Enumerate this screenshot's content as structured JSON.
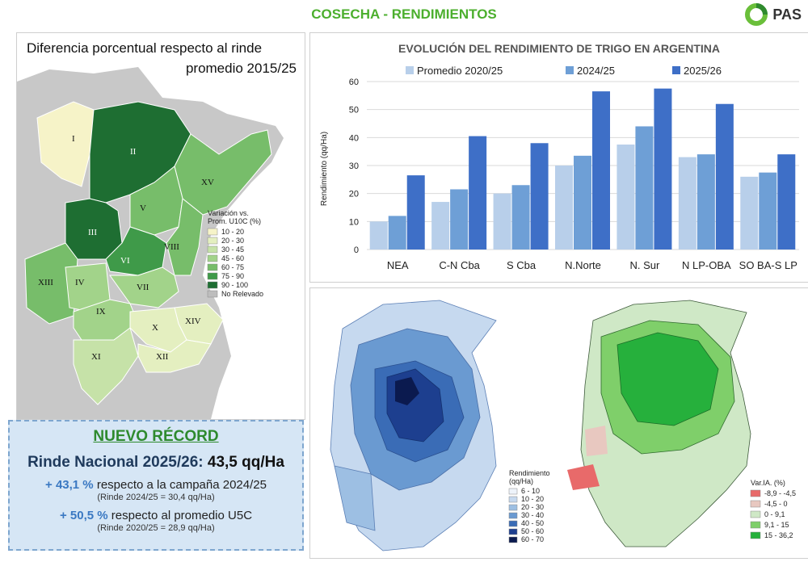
{
  "header": {
    "title": "COSECHA - RENDIMIENTOS",
    "logo_text": "PAS"
  },
  "left_map": {
    "title_line1": "Diferencia porcentual respecto al rinde",
    "title_line2": "promedio 2015/25",
    "legend_title_1": "Variación vs.",
    "legend_title_2": "Prom. U10C (%)",
    "legend": [
      {
        "label": "10 - 20",
        "color": "#f6f3c8"
      },
      {
        "label": "20 - 30",
        "color": "#e4efc0"
      },
      {
        "label": "30 - 45",
        "color": "#c6e2a8"
      },
      {
        "label": "45 - 60",
        "color": "#a2d38a"
      },
      {
        "label": "60 - 75",
        "color": "#77bd6a"
      },
      {
        "label": "75 - 90",
        "color": "#3f9a49"
      },
      {
        "label": "90 - 100",
        "color": "#1e6e32"
      },
      {
        "label": "No Relevado",
        "color": "#bdbdbd"
      }
    ],
    "zones": [
      {
        "label": "I",
        "color": "#f6f3c8"
      },
      {
        "label": "II",
        "color": "#1e6e32"
      },
      {
        "label": "III",
        "color": "#1e6e32"
      },
      {
        "label": "IV",
        "color": "#a2d38a"
      },
      {
        "label": "V",
        "color": "#77bd6a"
      },
      {
        "label": "VI",
        "color": "#3f9a49"
      },
      {
        "label": "VII",
        "color": "#a2d38a"
      },
      {
        "label": "VIII",
        "color": "#77bd6a"
      },
      {
        "label": "IX",
        "color": "#a2d38a"
      },
      {
        "label": "X",
        "color": "#e4efc0"
      },
      {
        "label": "XI",
        "color": "#c6e2a8"
      },
      {
        "label": "XII",
        "color": "#e4efc0"
      },
      {
        "label": "XIII",
        "color": "#77bd6a"
      },
      {
        "label": "XIV",
        "color": "#e4efc0"
      },
      {
        "label": "XV",
        "color": "#77bd6a"
      }
    ]
  },
  "record": {
    "title": "NUEVO RÉCORD",
    "main_label": "Rinde Nacional 2025/26:",
    "main_value": "43,5 qq/Ha",
    "line1_pct": "+ 43,1 %",
    "line1_text": " respecto a la campaña 2024/25",
    "line1_sub": "(Rinde 2024/25 = 30,4 qq/Ha)",
    "line2_pct": "+ 50,5 %",
    "line2_text": " respecto al promedio U5C",
    "line2_sub": "(Rinde 2020/25 = 28,9 qq/Ha)"
  },
  "chart_data": {
    "type": "bar",
    "title": "EVOLUCIÓN DEL RENDIMIENTO DE TRIGO EN ARGENTINA",
    "ylabel": "Rendimiento (qq/Ha)",
    "xlabel": "",
    "ylim": [
      0,
      60
    ],
    "yticks": [
      0,
      10,
      20,
      30,
      40,
      50,
      60
    ],
    "grid": true,
    "legend_position": "top",
    "categories": [
      "NEA",
      "C-N Cba",
      "S Cba",
      "N.Norte",
      "N. Sur",
      "N LP-OBA",
      "SO BA-S LP"
    ],
    "series": [
      {
        "name": "Promedio 2020/25",
        "color": "#b8cfea",
        "values": [
          10,
          17,
          20,
          30,
          37.5,
          33,
          26
        ]
      },
      {
        "name": "2024/25",
        "color": "#6e9fd6",
        "values": [
          12,
          21.5,
          23,
          33.5,
          44,
          34,
          27.5
        ]
      },
      {
        "name": "2025/26",
        "color": "#3e6fc7",
        "values": [
          26.5,
          40.5,
          38,
          56.5,
          57.5,
          52,
          34
        ]
      }
    ]
  },
  "map_blue": {
    "legend_title_1": "Rendimiento",
    "legend_title_2": "(qq/Ha)",
    "legend": [
      {
        "label": "6 - 10",
        "color": "#eef3fa"
      },
      {
        "label": "10 - 20",
        "color": "#c6d9ef"
      },
      {
        "label": "20 - 30",
        "color": "#9dbfe3"
      },
      {
        "label": "30 - 40",
        "color": "#6a9ad1"
      },
      {
        "label": "40 - 50",
        "color": "#3a6cb6"
      },
      {
        "label": "50 - 60",
        "color": "#1d3f8f"
      },
      {
        "label": "60 - 70",
        "color": "#0b1a4f"
      }
    ]
  },
  "map_green": {
    "legend_title": "Var.IA. (%)",
    "legend": [
      {
        "label": "-8,9 - -4,5",
        "color": "#e86a6a"
      },
      {
        "label": "-4,5 - 0",
        "color": "#e8c8c0"
      },
      {
        "label": "0 - 9,1",
        "color": "#cfe8c6"
      },
      {
        "label": "9,1 - 15",
        "color": "#7fcf6a"
      },
      {
        "label": "15 - 36,2",
        "color": "#26b03c"
      }
    ]
  }
}
